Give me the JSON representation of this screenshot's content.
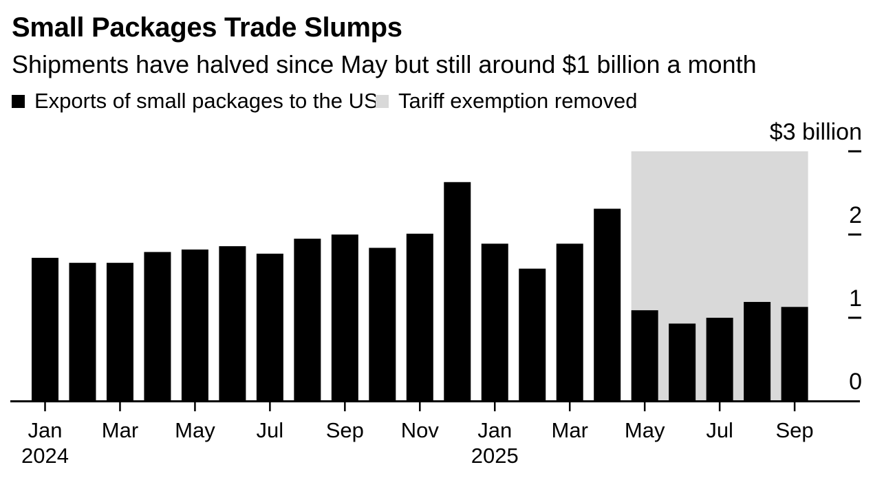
{
  "title": "Small Packages Trade Slumps",
  "subtitle": "Shipments have halved since May but still around $1 billion a month",
  "legend": [
    {
      "label": "Exports of small packages to the US",
      "color": "#000000",
      "swatch_icon": "black-square-icon"
    },
    {
      "label": "Tariff exemption removed",
      "color": "#d9d9d9",
      "swatch_icon": "gray-square-icon"
    }
  ],
  "colors": {
    "background": "#ffffff",
    "bar": "#000000",
    "band": "#d9d9d9",
    "axis": "#000000",
    "text": "#000000"
  },
  "chart_data": {
    "type": "bar",
    "title": "Small Packages Trade Slumps",
    "subtitle": "Shipments have halved since May but still around $1 billion a month",
    "series_name": "Exports of small packages to the US",
    "unit": "USD billion per month",
    "x": [
      "Jan 2024",
      "Feb 2024",
      "Mar 2024",
      "Apr 2024",
      "May 2024",
      "Jun 2024",
      "Jul 2024",
      "Aug 2024",
      "Sep 2024",
      "Oct 2024",
      "Nov 2024",
      "Dec 2024",
      "Jan 2025",
      "Feb 2025",
      "Mar 2025",
      "Apr 2025",
      "May 2025",
      "Jun 2025",
      "Jul 2025",
      "Aug 2025",
      "Sep 2025"
    ],
    "values": [
      1.72,
      1.66,
      1.66,
      1.79,
      1.82,
      1.86,
      1.77,
      1.95,
      2.0,
      1.84,
      2.01,
      2.63,
      1.89,
      1.59,
      1.89,
      2.31,
      1.09,
      0.93,
      1.0,
      1.19,
      1.13
    ],
    "highlight_band": {
      "label": "Tariff exemption removed",
      "start": "May 2025",
      "end": "Sep 2025",
      "y_top": 3,
      "color": "#d9d9d9"
    },
    "ylim": [
      0,
      3
    ],
    "yticks": [
      {
        "value": 3,
        "label": "$3 billion"
      },
      {
        "value": 2,
        "label": "2"
      },
      {
        "value": 1,
        "label": "1"
      },
      {
        "value": 0,
        "label": "0"
      }
    ],
    "xtick_labels": [
      "Jan",
      "Mar",
      "May",
      "Jul",
      "Sep",
      "Nov",
      "Jan",
      "Mar",
      "May",
      "Jul",
      "Sep"
    ],
    "xtick_every": 2,
    "year_labels": [
      {
        "label": "2024",
        "index": 0
      },
      {
        "label": "2025",
        "index": 12
      }
    ],
    "grid": false,
    "legend_position": "top",
    "y_axis_side": "right"
  }
}
